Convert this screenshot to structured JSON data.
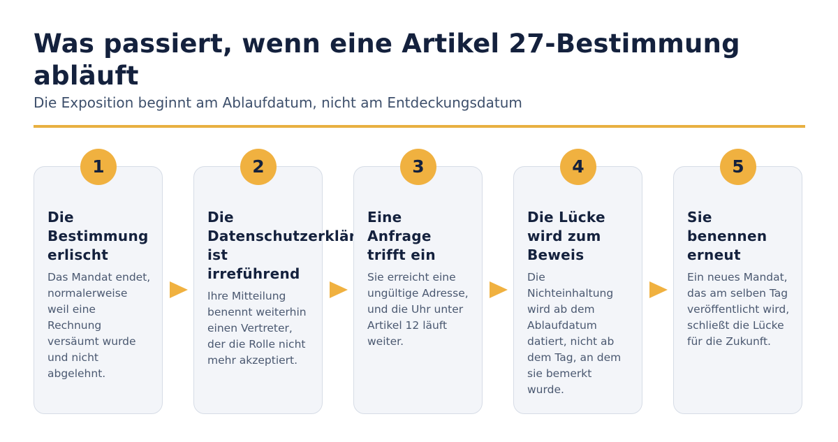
{
  "header": {
    "title": "Was passiert, wenn eine Artikel 27-Bestimmung abläuft",
    "subtitle": "Die Exposition beginnt am Ablaufdatum, nicht am Entdeckungsdatum"
  },
  "colors": {
    "accent": "#f0b140",
    "title": "#14213d",
    "card_bg": "#f3f5f9",
    "card_border": "#d6dce6",
    "body_text": "#4a5870"
  },
  "steps": [
    {
      "number": "1",
      "title": "Die Bestimmung erlischt",
      "body": "Das Mandat endet, normalerweise weil eine Rechnung versäumt wurde und nicht abgelehnt."
    },
    {
      "number": "2",
      "title": "Die Datenschutzerklärung ist irreführend",
      "body": "Ihre Mitteilung benennt weiterhin einen Vertreter, der die Rolle nicht mehr akzeptiert."
    },
    {
      "number": "3",
      "title": "Eine Anfrage trifft ein",
      "body": "Sie erreicht eine ungültige Adresse, und die Uhr unter Artikel 12 läuft weiter."
    },
    {
      "number": "4",
      "title": "Die Lücke wird zum Beweis",
      "body": "Die Nichteinhaltung wird ab dem Ablaufdatum datiert, nicht ab dem Tag, an dem sie bemerkt wurde."
    },
    {
      "number": "5",
      "title": "Sie benennen erneut",
      "body": "Ein neues Mandat, das am selben Tag veröffentlicht wird, schließt die Lücke für die Zukunft."
    }
  ]
}
